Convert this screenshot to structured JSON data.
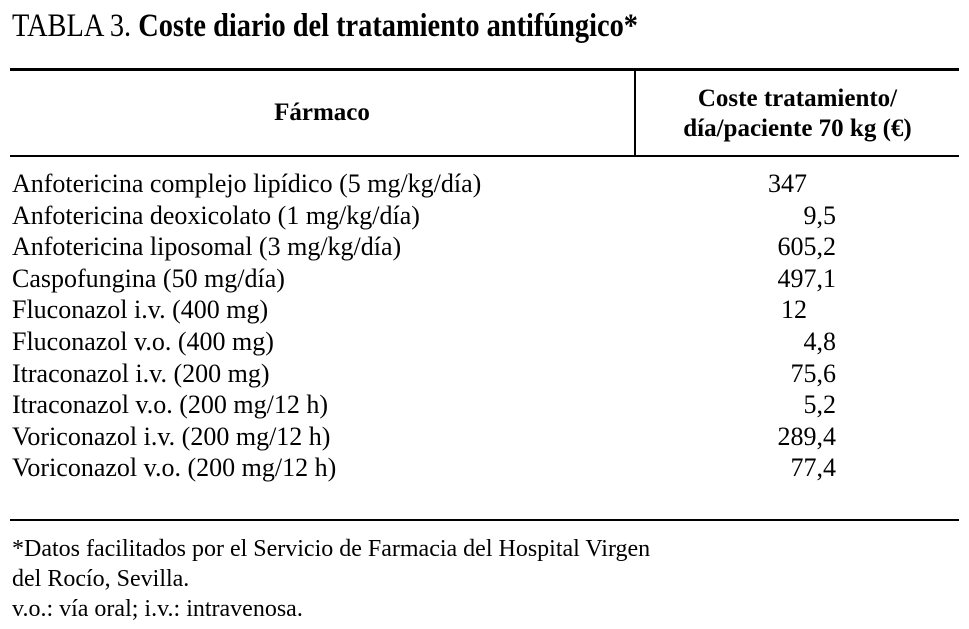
{
  "header": {
    "label": "TABLA 3.",
    "title": "Coste diario del tratamiento antifúngico*"
  },
  "table": {
    "columns": [
      "Fármaco",
      [
        "Coste tratamiento/",
        "día/paciente 70 kg (€)"
      ]
    ],
    "rows": [
      [
        "Anfotericina complejo lipídico (5 mg/kg/día)",
        "347"
      ],
      [
        "Anfotericina deoxicolato (1 mg/kg/día)",
        "9,5"
      ],
      [
        "Anfotericina liposomal (3 mg/kg/día)",
        "605,2"
      ],
      [
        "Caspofungina (50 mg/día)",
        "497,1"
      ],
      [
        "Fluconazol i.v. (400 mg)",
        "12"
      ],
      [
        "Fluconazol v.o. (400 mg)",
        "4,8"
      ],
      [
        "Itraconazol i.v. (200 mg)",
        "75,6"
      ],
      [
        "Itraconazol v.o. (200 mg/12 h)",
        "5,2"
      ],
      [
        "Voriconazol i.v. (200 mg/12 h)",
        "289,4"
      ],
      [
        "Voriconazol v.o. (200 mg/12 h)",
        "77,4"
      ]
    ]
  },
  "footnotes": [
    "*Datos facilitados por el Servicio de Farmacia del Hospital Virgen",
    "del Rocío, Sevilla.",
    "v.o.: vía oral; i.v.: intravenosa."
  ]
}
